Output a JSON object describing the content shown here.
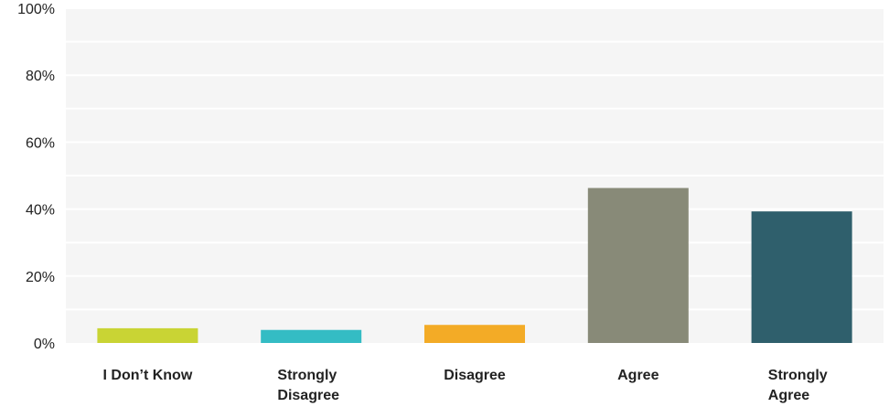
{
  "chart_data": {
    "type": "bar",
    "title": "",
    "xlabel": "",
    "ylabel": "",
    "ylim": [
      0,
      100
    ],
    "y_ticks": [
      "0%",
      "20%",
      "40%",
      "60%",
      "80%",
      "100%"
    ],
    "y_tick_values": [
      0,
      20,
      40,
      60,
      80,
      100
    ],
    "grid": true,
    "categories": [
      [
        "I Don’t Know"
      ],
      [
        "Strongly",
        "Disagree"
      ],
      [
        "Disagree"
      ],
      [
        "Agree"
      ],
      [
        "Strongly",
        "Agree"
      ]
    ],
    "values": [
      4.4,
      3.9,
      5.4,
      46.3,
      39.3
    ],
    "colors": [
      "#c9d434",
      "#34bcc4",
      "#f3ab26",
      "#888a78",
      "#2f5f6c"
    ],
    "background_color": "#f5f5f5",
    "grid_color": "#ffffff"
  }
}
